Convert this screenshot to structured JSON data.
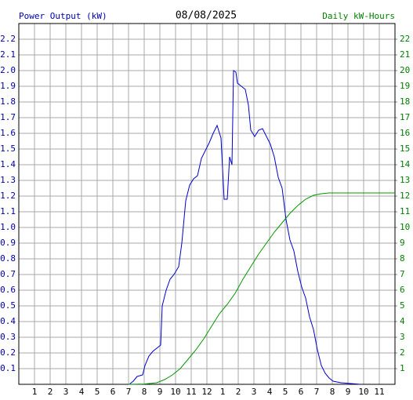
{
  "chart_data": {
    "type": "line",
    "title": "08/08/2025",
    "y_label": "Power Output (kW)",
    "y2_label": "Daily kW-Hours",
    "xlim": [
      0,
      24
    ],
    "xticks": [
      1,
      2,
      3,
      4,
      5,
      6,
      7,
      8,
      9,
      10,
      11,
      12,
      {
        "value": 13,
        "label": "1"
      },
      {
        "value": 14,
        "label": "2"
      },
      {
        "value": 15,
        "label": "3"
      },
      {
        "value": 16,
        "label": "4"
      },
      {
        "value": 17,
        "label": "5"
      },
      {
        "value": 18,
        "label": "6"
      },
      {
        "value": 19,
        "label": "7"
      },
      {
        "value": 20,
        "label": "8"
      },
      {
        "value": 21,
        "label": "9"
      },
      {
        "value": 22,
        "label": "10"
      },
      {
        "value": 23,
        "label": "11"
      }
    ],
    "ylim": [
      0,
      2.3
    ],
    "yticks": [
      0.1,
      0.2,
      0.3,
      0.4,
      0.5,
      0.6,
      0.7,
      0.8,
      0.9,
      {
        "value": 1,
        "label": "1.0"
      },
      1.1,
      1.2,
      1.3,
      1.4,
      1.5,
      1.6,
      1.7,
      1.8,
      1.9,
      {
        "value": 2,
        "label": "2.0"
      },
      2.1,
      2.2
    ],
    "y2lim": [
      0,
      23
    ],
    "y2ticks": [
      1,
      2,
      3,
      4,
      5,
      6,
      7,
      8,
      9,
      10,
      11,
      12,
      13,
      14,
      15,
      16,
      17,
      18,
      19,
      20,
      21,
      22
    ],
    "grid": true,
    "y_color": "#0000aa",
    "y2_color": "#008000",
    "series": [
      {
        "name": "Power Output (kW)",
        "color": "#0000cc",
        "x": [
          7.05,
          7.3,
          7.55,
          7.9,
          8.05,
          8.3,
          8.55,
          8.8,
          9.05,
          9.15,
          9.4,
          9.65,
          9.9,
          10.2,
          10.4,
          10.65,
          10.9,
          11.15,
          11.4,
          11.65,
          11.9,
          12.15,
          12.4,
          12.65,
          12.9,
          13.1,
          13.3,
          13.45,
          13.6,
          13.7,
          13.85,
          13.95,
          14.2,
          14.45,
          14.65,
          14.8,
          15.05,
          15.3,
          15.55,
          15.8,
          16.05,
          16.3,
          16.55,
          16.8,
          17.05,
          17.3,
          17.55,
          17.8,
          18.05,
          18.3,
          18.55,
          18.8,
          19.05,
          19.3,
          19.55,
          19.8,
          20.05,
          20.55,
          21.8
        ],
        "values": [
          0,
          0.02,
          0.05,
          0.06,
          0.12,
          0.18,
          0.21,
          0.23,
          0.25,
          0.5,
          0.6,
          0.67,
          0.7,
          0.75,
          0.9,
          1.17,
          1.27,
          1.31,
          1.33,
          1.44,
          1.49,
          1.54,
          1.6,
          1.65,
          1.57,
          1.18,
          1.18,
          1.45,
          1.4,
          2.0,
          1.99,
          1.92,
          1.9,
          1.88,
          1.78,
          1.62,
          1.58,
          1.62,
          1.63,
          1.58,
          1.53,
          1.45,
          1.32,
          1.25,
          1.05,
          0.92,
          0.85,
          0.72,
          0.62,
          0.55,
          0.43,
          0.35,
          0.22,
          0.12,
          0.07,
          0.04,
          0.02,
          0.01,
          0
        ]
      },
      {
        "name": "Daily kW-Hours",
        "color": "#009900",
        "axis": "y2",
        "x": [
          7.0,
          8.0,
          8.8,
          9.3,
          9.8,
          10.3,
          10.8,
          11.3,
          11.8,
          12.3,
          12.8,
          13.3,
          13.8,
          14.3,
          14.8,
          15.3,
          15.8,
          16.3,
          16.8,
          17.3,
          17.8,
          18.3,
          18.8,
          19.3,
          19.8,
          24
        ],
        "values": [
          0,
          0.02,
          0.1,
          0.3,
          0.6,
          1.0,
          1.6,
          2.2,
          2.9,
          3.7,
          4.5,
          5.1,
          5.8,
          6.7,
          7.5,
          8.3,
          9.0,
          9.7,
          10.3,
          10.9,
          11.4,
          11.8,
          12.05,
          12.15,
          12.2,
          12.2
        ]
      }
    ]
  }
}
